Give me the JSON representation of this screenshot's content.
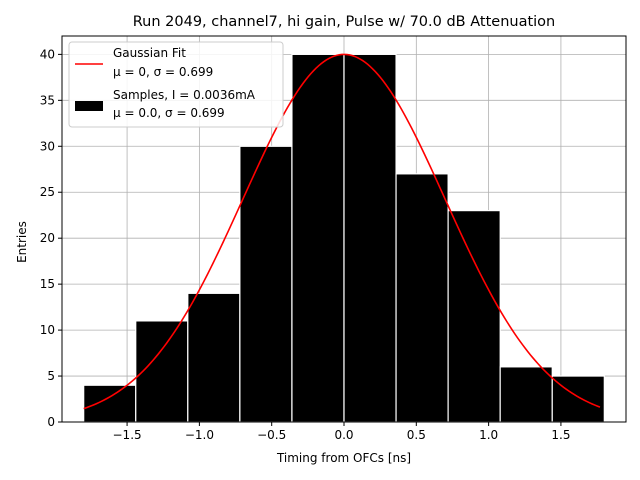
{
  "chart_data": {
    "type": "bar",
    "title": "Run 2049, channel7, hi gain, Pulse w/ 70.0 dB Attenuation",
    "xlabel": "Timing from OFCs [ns]",
    "ylabel": "Entries",
    "xlim": [
      -1.95,
      1.95
    ],
    "ylim": [
      0,
      42
    ],
    "grid": true,
    "legend_position": "top-left",
    "xticks": [
      -1.5,
      -1.0,
      -0.5,
      0.0,
      0.5,
      1.0,
      1.5
    ],
    "xtick_labels": [
      "−1.5",
      "−1.0",
      "−0.5",
      "0.0",
      "0.5",
      "1.0",
      "1.5"
    ],
    "yticks": [
      0,
      5,
      10,
      15,
      20,
      25,
      30,
      35,
      40
    ],
    "ytick_labels": [
      "0",
      "5",
      "10",
      "15",
      "20",
      "25",
      "30",
      "35",
      "40"
    ],
    "bins": [
      {
        "x0": -1.8,
        "x1": -1.44,
        "value": 4
      },
      {
        "x0": -1.44,
        "x1": -1.08,
        "value": 11
      },
      {
        "x0": -1.08,
        "x1": -0.72,
        "value": 14
      },
      {
        "x0": -0.72,
        "x1": -0.36,
        "value": 30
      },
      {
        "x0": -0.36,
        "x1": 0.0,
        "value": 40
      },
      {
        "x0": 0.0,
        "x1": 0.36,
        "value": 40
      },
      {
        "x0": 0.36,
        "x1": 0.72,
        "value": 27
      },
      {
        "x0": 0.72,
        "x1": 1.08,
        "value": 23
      },
      {
        "x0": 1.08,
        "x1": 1.44,
        "value": 6
      },
      {
        "x0": 1.44,
        "x1": 1.8,
        "value": 5
      }
    ],
    "fit": {
      "mu": 0,
      "sigma": 0.699,
      "amplitude": 40,
      "x_range": [
        -1.8,
        1.77
      ]
    },
    "legend": [
      {
        "label": "Gaussian Fit",
        "sublabel": "μ = 0, σ = 0.699",
        "kind": "line",
        "color": "#ff0000"
      },
      {
        "label": "Samples, I = 0.0036mA",
        "sublabel": "μ = 0.0, σ = 0.699",
        "kind": "bar",
        "color": "#000000"
      }
    ],
    "colors": {
      "bars": "#000000",
      "bar_edge": "#ffffff",
      "fit": "#ff0000",
      "grid": "#b0b0b0"
    }
  }
}
